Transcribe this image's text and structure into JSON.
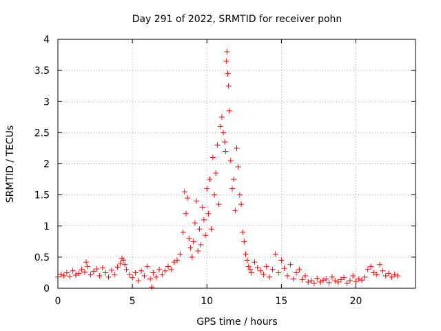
{
  "chart_data": {
    "type": "scatter",
    "title": "Day 291 of 2022, SRMTID for receiver pohn",
    "xlabel": "GPS time / hours",
    "ylabel": "SRMTID / TECUs",
    "xlim": [
      0,
      24
    ],
    "ylim": [
      0,
      4
    ],
    "xticks": [
      0,
      5,
      10,
      15,
      20
    ],
    "yticks": [
      0,
      0.5,
      1,
      1.5,
      2,
      2.5,
      3,
      3.5,
      4
    ],
    "xtick_labels": [
      "0",
      "5",
      "10",
      "15",
      "20"
    ],
    "ytick_labels": [
      "0",
      "0.5",
      "1",
      "1.5",
      "2",
      "2.5",
      "3",
      "3.5",
      "4"
    ],
    "grid": true,
    "marker": "plus",
    "color": "#ff0000",
    "series": [
      {
        "name": "SRMTID",
        "x": [
          0.0,
          0.2,
          0.4,
          0.6,
          0.8,
          1.0,
          1.2,
          1.4,
          1.6,
          1.8,
          1.9,
          2.0,
          2.2,
          2.4,
          2.6,
          2.8,
          3.0,
          3.2,
          3.4,
          3.6,
          3.8,
          4.0,
          4.2,
          4.3,
          4.4,
          4.5,
          4.6,
          4.8,
          5.0,
          5.2,
          5.4,
          5.6,
          5.8,
          6.0,
          6.2,
          6.3,
          6.4,
          6.6,
          6.8,
          7.0,
          7.2,
          7.4,
          7.6,
          7.8,
          8.0,
          8.2,
          8.4,
          8.5,
          8.6,
          8.7,
          8.8,
          8.9,
          9.0,
          9.1,
          9.2,
          9.3,
          9.4,
          9.5,
          9.6,
          9.7,
          9.8,
          9.9,
          10.0,
          10.1,
          10.2,
          10.3,
          10.4,
          10.5,
          10.6,
          10.7,
          10.8,
          10.9,
          11.0,
          11.1,
          11.2,
          11.25,
          11.3,
          11.35,
          11.4,
          11.45,
          11.5,
          11.6,
          11.7,
          11.8,
          11.9,
          12.0,
          12.1,
          12.2,
          12.3,
          12.4,
          12.5,
          12.6,
          12.7,
          12.8,
          12.9,
          13.0,
          13.2,
          13.4,
          13.6,
          13.8,
          14.0,
          14.2,
          14.4,
          14.6,
          14.8,
          15.0,
          15.2,
          15.4,
          15.6,
          15.8,
          16.0,
          16.2,
          16.4,
          16.6,
          16.8,
          17.0,
          17.2,
          17.4,
          17.6,
          17.8,
          18.0,
          18.2,
          18.4,
          18.6,
          18.8,
          19.0,
          19.2,
          19.4,
          19.6,
          19.8,
          20.0,
          20.2,
          20.4,
          20.6,
          20.8,
          21.0,
          21.2,
          21.4,
          21.6,
          21.8,
          22.0,
          22.2,
          22.4,
          22.6,
          22.8
        ],
        "y": [
          0.18,
          0.22,
          0.2,
          0.25,
          0.19,
          0.28,
          0.21,
          0.24,
          0.3,
          0.26,
          0.42,
          0.35,
          0.22,
          0.27,
          0.31,
          0.2,
          0.33,
          0.25,
          0.18,
          0.29,
          0.22,
          0.34,
          0.4,
          0.48,
          0.45,
          0.38,
          0.3,
          0.22,
          0.17,
          0.25,
          0.12,
          0.28,
          0.2,
          0.35,
          0.15,
          0.02,
          0.25,
          0.18,
          0.3,
          0.22,
          0.28,
          0.35,
          0.3,
          0.42,
          0.45,
          0.55,
          0.9,
          1.55,
          1.2,
          1.45,
          0.8,
          0.65,
          0.5,
          0.75,
          1.05,
          1.4,
          0.6,
          0.95,
          0.7,
          1.3,
          1.1,
          0.85,
          1.6,
          1.2,
          1.75,
          0.95,
          2.1,
          1.5,
          1.85,
          2.3,
          1.35,
          2.6,
          2.75,
          2.5,
          2.35,
          2.2,
          3.65,
          3.8,
          3.45,
          3.25,
          2.85,
          2.05,
          1.6,
          1.75,
          1.25,
          2.25,
          1.95,
          1.5,
          1.35,
          0.9,
          0.75,
          0.55,
          0.45,
          0.35,
          0.3,
          0.25,
          0.42,
          0.33,
          0.28,
          0.22,
          0.35,
          0.18,
          0.3,
          0.55,
          0.25,
          0.45,
          0.32,
          0.2,
          0.38,
          0.15,
          0.25,
          0.3,
          0.14,
          0.2,
          0.1,
          0.12,
          0.08,
          0.16,
          0.1,
          0.13,
          0.15,
          0.09,
          0.18,
          0.12,
          0.1,
          0.14,
          0.17,
          0.08,
          0.12,
          0.2,
          0.11,
          0.15,
          0.13,
          0.18,
          0.3,
          0.35,
          0.25,
          0.22,
          0.38,
          0.28,
          0.2,
          0.24,
          0.18,
          0.22,
          0.2
        ]
      }
    ]
  }
}
